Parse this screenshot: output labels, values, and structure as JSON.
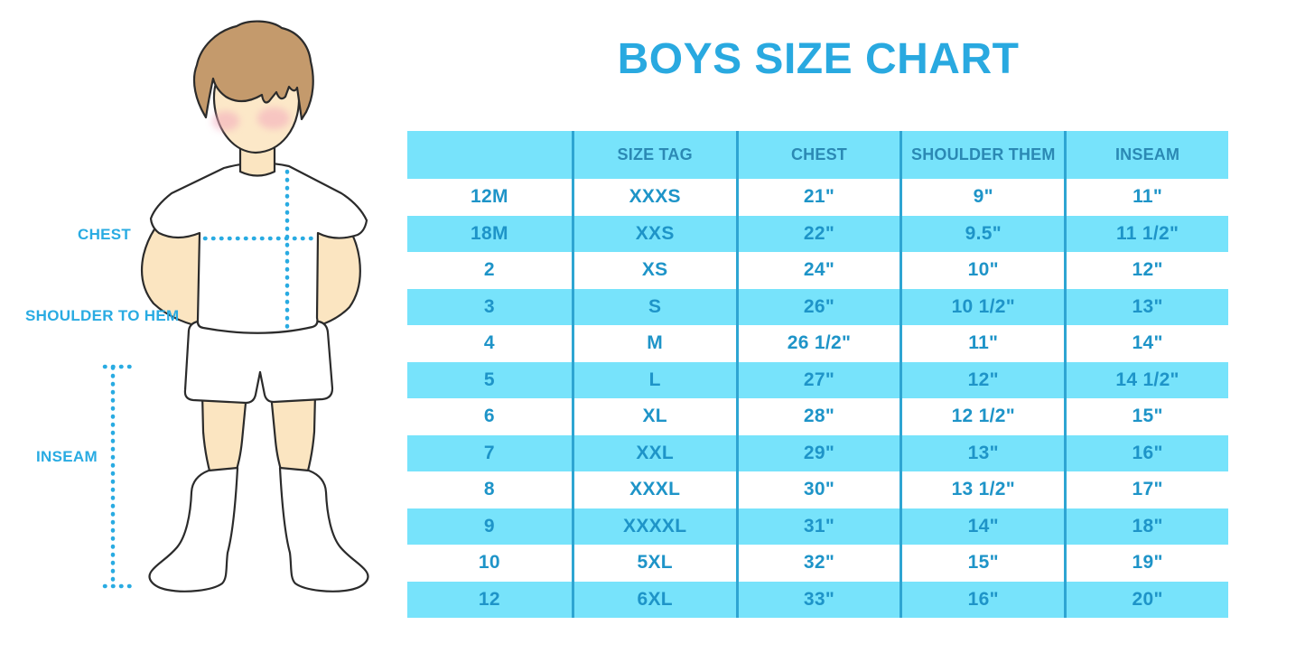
{
  "title": "BOYS SIZE CHART",
  "colors": {
    "accent_blue": "#29A9E0",
    "row_highlight": "#77E3FB",
    "divider": "#2EA5D2",
    "table_text": "#1E94C8",
    "label_text": "#29ABE2",
    "skin": "#FBE5C1",
    "hair": "#C49A6C",
    "blush": "#F3A9BC"
  },
  "figure": {
    "labels": {
      "chest": "CHEST",
      "shoulder_to_hem": "SHOULDER TO HEM",
      "inseam": "INSEAM"
    }
  },
  "table": {
    "columns": [
      "",
      "SIZE TAG",
      "CHEST",
      "SHOULDER THEM",
      "INSEAM"
    ],
    "rows": [
      [
        "12M",
        "XXXS",
        "21\"",
        "9\"",
        "11\""
      ],
      [
        "18M",
        "XXS",
        "22\"",
        "9.5\"",
        "11 1/2\""
      ],
      [
        "2",
        "XS",
        "24\"",
        "10\"",
        "12\""
      ],
      [
        "3",
        "S",
        "26\"",
        "10 1/2\"",
        "13\""
      ],
      [
        "4",
        "M",
        "26 1/2\"",
        "11\"",
        "14\""
      ],
      [
        "5",
        "L",
        "27\"",
        "12\"",
        "14 1/2\""
      ],
      [
        "6",
        "XL",
        "28\"",
        "12 1/2\"",
        "15\""
      ],
      [
        "7",
        "XXL",
        "29\"",
        "13\"",
        "16\""
      ],
      [
        "8",
        "XXXL",
        "30\"",
        "13 1/2\"",
        "17\""
      ],
      [
        "9",
        "XXXXL",
        "31\"",
        "14\"",
        "18\""
      ],
      [
        "10",
        "5XL",
        "32\"",
        "15\"",
        "19\""
      ],
      [
        "12",
        "6XL",
        "33\"",
        "16\"",
        "20\""
      ]
    ]
  },
  "chart_data": {
    "type": "table",
    "title": "BOYS SIZE CHART",
    "columns": [
      "",
      "SIZE TAG",
      "CHEST",
      "SHOULDER THEM",
      "INSEAM"
    ],
    "rows": [
      [
        "12M",
        "XXXS",
        "21\"",
        "9\"",
        "11\""
      ],
      [
        "18M",
        "XXS",
        "22\"",
        "9.5\"",
        "11 1/2\""
      ],
      [
        "2",
        "XS",
        "24\"",
        "10\"",
        "12\""
      ],
      [
        "3",
        "S",
        "26\"",
        "10 1/2\"",
        "13\""
      ],
      [
        "4",
        "M",
        "26 1/2\"",
        "11\"",
        "14\""
      ],
      [
        "5",
        "L",
        "27\"",
        "12\"",
        "14 1/2\""
      ],
      [
        "6",
        "XL",
        "28\"",
        "12 1/2\"",
        "15\""
      ],
      [
        "7",
        "XXL",
        "29\"",
        "13\"",
        "16\""
      ],
      [
        "8",
        "XXXL",
        "30\"",
        "13 1/2\"",
        "17\""
      ],
      [
        "9",
        "XXXXL",
        "31\"",
        "14\"",
        "18\""
      ],
      [
        "10",
        "5XL",
        "32\"",
        "15\"",
        "19\""
      ],
      [
        "12",
        "6XL",
        "33\"",
        "16\"",
        "20\""
      ]
    ],
    "annotations": [
      "CHEST",
      "SHOULDER TO HEM",
      "INSEAM"
    ]
  }
}
